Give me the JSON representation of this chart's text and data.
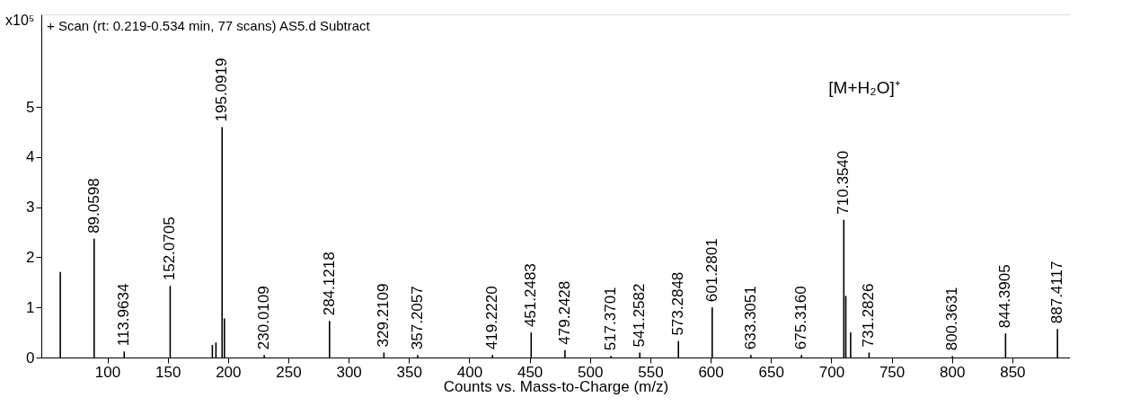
{
  "chart_data": {
    "type": "bar",
    "title": "+ Scan (rt: 0.219-0.534 min, 77 scans) AS5.d  Subtract",
    "xlabel": "Counts vs. Mass-to-Charge (m/z)",
    "ylabel": "x10⁵",
    "x": [
      61,
      89.0598,
      113.9634,
      152.0705,
      187,
      190,
      195.0919,
      197,
      230.0109,
      284.1218,
      329.2109,
      357.2057,
      419.222,
      451.2483,
      479.2428,
      517.3701,
      541.2582,
      573.2848,
      601.2801,
      633.3051,
      675.316,
      710.354,
      712,
      716,
      731.2826,
      800.3631,
      844.3905,
      887.4117
    ],
    "values": [
      1.71,
      2.37,
      0.12,
      1.43,
      0.25,
      0.3,
      4.6,
      0.78,
      0.05,
      0.73,
      0.1,
      0.05,
      0.05,
      0.5,
      0.15,
      0.03,
      0.1,
      0.33,
      1.0,
      0.05,
      0.05,
      2.75,
      1.23,
      0.5,
      0.1,
      0.03,
      0.48,
      0.57
    ],
    "color": "#000000",
    "xlim": [
      49,
      894
    ],
    "ylim": [
      0,
      6.85
    ],
    "xticks": [
      100,
      150,
      200,
      250,
      300,
      350,
      400,
      450,
      500,
      550,
      600,
      650,
      700,
      750,
      800,
      850
    ],
    "yticks": [
      0,
      1,
      2,
      3,
      4,
      5
    ],
    "annotations": [
      "[M+H₂O]⁺",
      {
        "text": "89.0598",
        "x": 89.0598,
        "y": 2.37
      },
      {
        "text": "113.9634",
        "x": 113.9634,
        "y": 0.12
      },
      {
        "text": "152.0705",
        "x": 152.0705,
        "y": 1.43
      },
      {
        "text": "195.0919",
        "x": 195.0919,
        "y": 4.6
      },
      {
        "text": "230.0109",
        "x": 230.0109,
        "y": 0.05
      },
      {
        "text": "284.1218",
        "x": 284.1218,
        "y": 0.73
      },
      {
        "text": "329.2109",
        "x": 329.2109,
        "y": 0.1
      },
      {
        "text": "357.2057",
        "x": 357.2057,
        "y": 0.05
      },
      {
        "text": "419.2220",
        "x": 419.222,
        "y": 0.05
      },
      {
        "text": "451.2483",
        "x": 451.2483,
        "y": 0.5
      },
      {
        "text": "479.2428",
        "x": 479.2428,
        "y": 0.15
      },
      {
        "text": "517.3701",
        "x": 517.3701,
        "y": 0.03
      },
      {
        "text": "541.2582",
        "x": 541.2582,
        "y": 0.1
      },
      {
        "text": "573.2848",
        "x": 573.2848,
        "y": 0.33
      },
      {
        "text": "601.2801",
        "x": 601.2801,
        "y": 1.0
      },
      {
        "text": "633.3051",
        "x": 633.3051,
        "y": 0.05
      },
      {
        "text": "675.3160",
        "x": 675.316,
        "y": 0.05
      },
      {
        "text": "710.3540",
        "x": 710.354,
        "y": 2.75
      },
      {
        "text": "731.2826",
        "x": 731.2826,
        "y": 0.1
      },
      {
        "text": "800.3631",
        "x": 800.3631,
        "y": 0.03
      },
      {
        "text": "844.3905",
        "x": 844.3905,
        "y": 0.48
      },
      {
        "text": "887.4117",
        "x": 887.4117,
        "y": 0.57
      }
    ]
  }
}
